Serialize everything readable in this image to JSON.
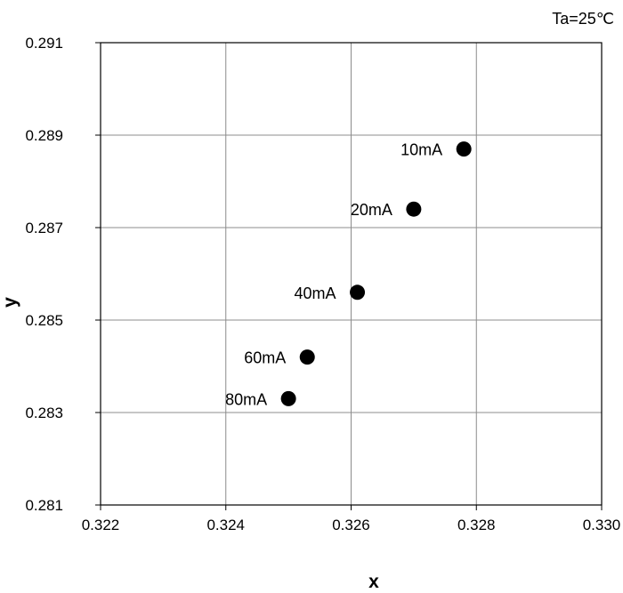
{
  "chart_data": {
    "type": "scatter",
    "title": "",
    "annotation": "Ta=25℃",
    "xlabel": "x",
    "ylabel": "y",
    "xlim": [
      0.322,
      0.33
    ],
    "ylim": [
      0.281,
      0.291
    ],
    "x_ticks": [
      "0.322",
      "0.324",
      "0.326",
      "0.328",
      "0.330"
    ],
    "y_ticks": [
      "0.281",
      "0.283",
      "0.285",
      "0.287",
      "0.289",
      "0.291"
    ],
    "grid": true,
    "marker_color": "#000000",
    "points": [
      {
        "label": "10mA",
        "x": 0.3278,
        "y": 0.2887
      },
      {
        "label": "20mA",
        "x": 0.327,
        "y": 0.2874
      },
      {
        "label": "40mA",
        "x": 0.3261,
        "y": 0.2856
      },
      {
        "label": "60mA",
        "x": 0.3253,
        "y": 0.2842
      },
      {
        "label": "80mA",
        "x": 0.325,
        "y": 0.2833
      }
    ]
  }
}
